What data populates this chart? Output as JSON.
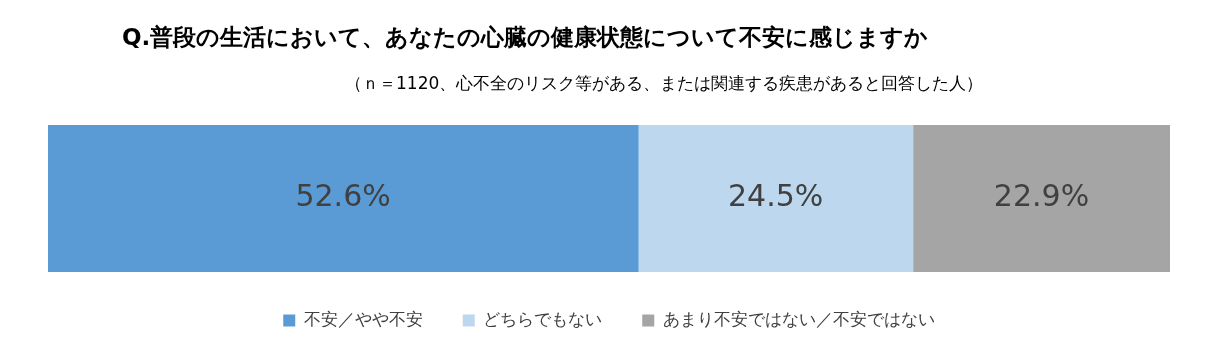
{
  "chart_data": {
    "type": "bar",
    "orientation": "horizontal",
    "stacked": true,
    "title": "Q.普段の生活において、あなたの心臓の健康状態について不安に感じますか",
    "subtitle": "（ｎ＝1120、心不全のリスク等がある、または関連する疾患があると回答した人）",
    "categories": [
      null
    ],
    "legend": "bottom",
    "series": [
      {
        "name": "不安／やや不安",
        "color": "#5b9bd5",
        "values": [
          52.6
        ],
        "value_labels": [
          "52.6%"
        ]
      },
      {
        "name": "どちらでもない",
        "color": "#bdd7ee",
        "values": [
          24.5
        ],
        "value_labels": [
          "24.5%"
        ]
      },
      {
        "name": "あまり不安ではない／不安ではない",
        "color": "#a5a5a5",
        "values": [
          22.9
        ],
        "value_labels": [
          "22.9%"
        ]
      }
    ]
  }
}
